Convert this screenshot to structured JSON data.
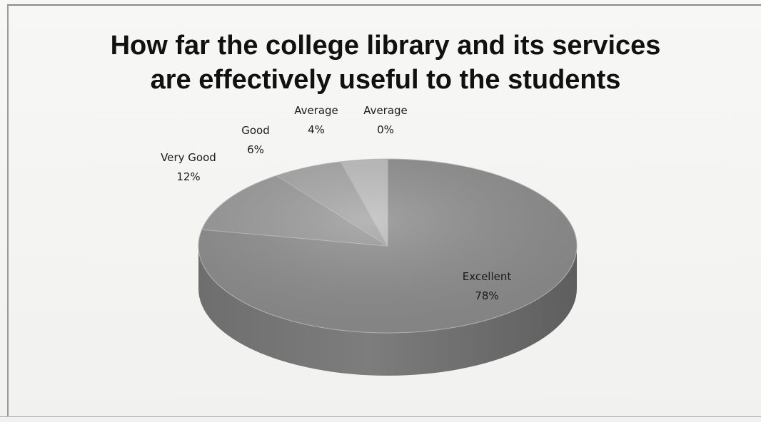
{
  "chart_data": {
    "type": "pie",
    "title_lines": [
      "How far the college library and its services",
      "are effectively useful to the students"
    ],
    "slices": [
      {
        "category": "Excellent",
        "value": 78,
        "label": "78%",
        "color": "#8e8e8e"
      },
      {
        "category": "Very Good",
        "value": 12,
        "label": "12%",
        "color": "#9a9a9a"
      },
      {
        "category": "Good",
        "value": 6,
        "label": "6%",
        "color": "#a6a6a6"
      },
      {
        "category": "Average",
        "value": 4,
        "label": "4%",
        "color": "#bdbdbd"
      },
      {
        "category": "Average",
        "value": 0,
        "label": "0%",
        "color": "#d0d0d0"
      }
    ],
    "legend": "none",
    "style": "3d"
  }
}
